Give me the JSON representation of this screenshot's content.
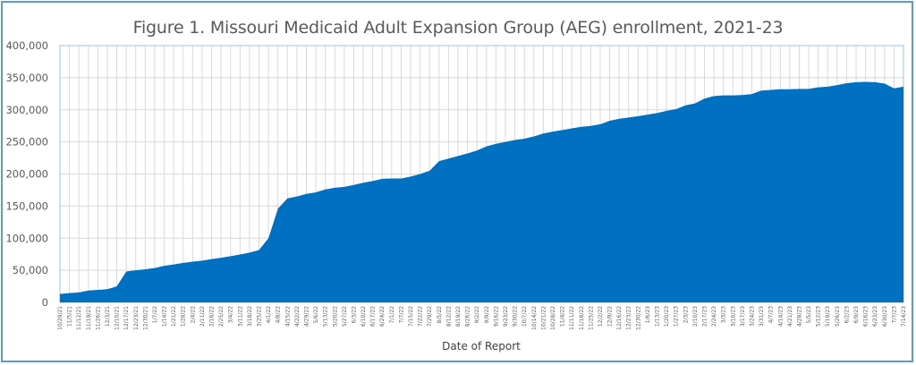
{
  "chart_data": {
    "type": "area",
    "title": "Figure 1. Missouri Medicaid Adult Expansion Group (AEG) enrollment, 2021-23",
    "xlabel": "Date of Report",
    "ylabel": "",
    "ylim": [
      0,
      400000
    ],
    "yticks": [
      0,
      50000,
      100000,
      150000,
      200000,
      250000,
      300000,
      350000,
      400000
    ],
    "ytick_labels": [
      "0",
      "50,000",
      "100,000",
      "150,000",
      "200,000",
      "250,000",
      "300,000",
      "350,000",
      "400,000"
    ],
    "grid": true,
    "legend": "none",
    "color": "#0070c0",
    "x": [
      "10/29/21",
      "11/5/21",
      "11/12/21",
      "11/19/21",
      "11/26/21",
      "12/3/21",
      "12/10/21",
      "12/17/21",
      "12/23/21",
      "12/30/21",
      "1/7/22",
      "1/14/22",
      "1/21/22",
      "1/28/22",
      "2/4/22",
      "2/11/22",
      "2/18/22",
      "2/25/22",
      "3/4/22",
      "3/11/22",
      "3/18/22",
      "3/25/22",
      "4/1/22",
      "4/8/22",
      "4/15/22",
      "4/22/22",
      "4/29/22",
      "5/6/22",
      "5/13/22",
      "5/20/22",
      "5/27/22",
      "6/3/22",
      "6/10/22",
      "6/17/22",
      "6/24/22",
      "7/1/22",
      "7/7/22",
      "7/15/22",
      "7/22/22",
      "7/29/22",
      "8/5/22",
      "8/12/22",
      "8/19/22",
      "8/26/22",
      "9/2/22",
      "9/9/22",
      "9/16/22",
      "9/23/22",
      "9/30/22",
      "10/7/22",
      "10/14/22",
      "10/21/22",
      "10/28/22",
      "11/4/22",
      "11/11/22",
      "11/18/22",
      "11/25/22",
      "12/2/22",
      "12/9/22",
      "12/16/22",
      "12/23/22",
      "12/30/22",
      "1/6/23",
      "1/13/23",
      "1/20/23",
      "1/27/23",
      "2/3/23",
      "2/10/23",
      "2/17/23",
      "2/24/23",
      "3/3/23",
      "3/10/23",
      "3/17/23",
      "3/24/23",
      "3/31/23",
      "4/7/23",
      "4/14/23",
      "4/21/23",
      "4/28/23",
      "5/5/23",
      "5/12/23",
      "5/19/23",
      "5/26/23",
      "6/2/23",
      "6/9/23",
      "6/16/23",
      "6/23/23",
      "6/30/23",
      "7/7/23",
      "7/14/23"
    ],
    "series": [
      {
        "name": "AEG enrollment",
        "values": [
          13000,
          14500,
          15500,
          18500,
          19500,
          20500,
          25000,
          48000,
          50000,
          51500,
          53500,
          57000,
          59000,
          61500,
          63500,
          65000,
          67500,
          69500,
          72000,
          74500,
          77500,
          81500,
          100000,
          146000,
          162000,
          165000,
          169000,
          171500,
          176000,
          178500,
          180000,
          183000,
          186500,
          189000,
          192500,
          193000,
          193000,
          196000,
          200000,
          205000,
          220000,
          224000,
          228000,
          232000,
          236500,
          243000,
          247000,
          250000,
          253000,
          255000,
          258500,
          263000,
          266000,
          268500,
          271000,
          273500,
          275000,
          277500,
          283000,
          286000,
          288000,
          290000,
          292500,
          295000,
          298500,
          301000,
          307000,
          310000,
          317500,
          321500,
          322500,
          322500,
          323000,
          324500,
          330000,
          331000,
          332000,
          332000,
          332500,
          332500,
          335000,
          336000,
          338500,
          341500,
          343000,
          343500,
          343000,
          341000,
          333500,
          336000
        ]
      }
    ]
  }
}
